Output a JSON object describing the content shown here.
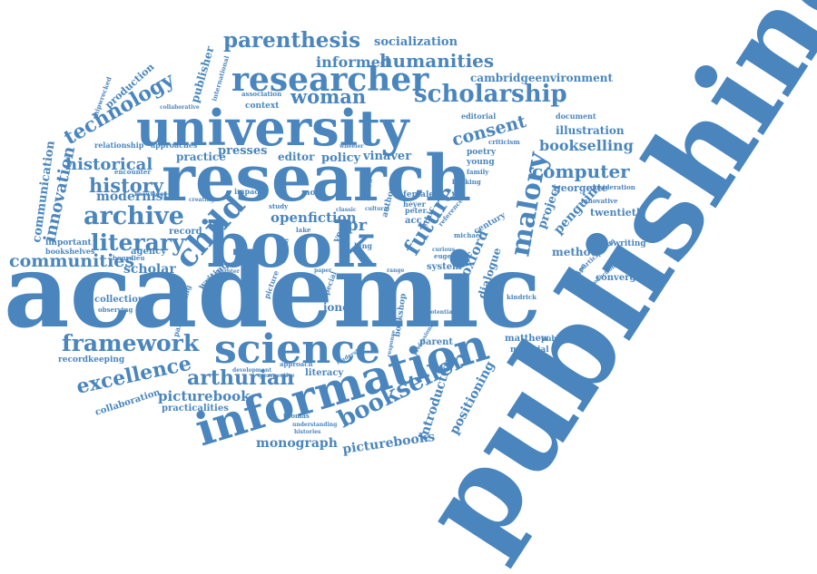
{
  "colors": {
    "ink": "#4a86bd",
    "background": "#ffffff"
  },
  "words": {
    "publishing": "publishing",
    "academic": "academic",
    "university": "university",
    "research": "research",
    "book": "book",
    "science": "science",
    "information": "information",
    "researcher": "researcher",
    "parenthesis": "parenthesis",
    "scholarship": "scholarship",
    "framework": "framework",
    "archive": "archive",
    "literary": "literary",
    "history": "history",
    "historical": "historical",
    "communities": "communities",
    "child": "child",
    "excellence": "excellence",
    "arthurian": "arthurian",
    "bookseller": "bookseller",
    "technology": "technology",
    "woman": "woman",
    "humanities": "humanities",
    "informed": "informed",
    "computer": "computer",
    "malory": "malory",
    "future": "future",
    "consent": "consent",
    "bookselling": "bookselling",
    "innovation": "innovation",
    "communication": "communication",
    "modernist": "modernist",
    "openfiction": "openfiction",
    "picturebook": "picturebook",
    "picturebooks": "picturebooks",
    "monograph": "monograph",
    "introduction": "introduction",
    "positioning": "positioning",
    "socialization": "socialization",
    "cambridgeenvironment": "cambridgeenvironment",
    "scholar": "scholar",
    "presses": "presses",
    "policy": "policy",
    "vinaver": "vinaver",
    "editor": "editor",
    "oxford": "oxford",
    "project": "project",
    "penguin": "penguin",
    "dialogue": "dialogue",
    "jones": "jones",
    "practice": "practice",
    "publisher": "publisher",
    "production": "production",
    "illustration": "illustration",
    "georgette": "georgette",
    "twentieth": "twentieth",
    "method": "method",
    "convergence": "convergence",
    "lewiswriting": "lewiswriting",
    "collection": "collection",
    "recordkeeping": "recordkeeping",
    "collaboration": "collaboration",
    "practicalities": "practicalities",
    "matthew": "matthew",
    "publication": "publication",
    "material": "material",
    "parent": "parent",
    "literacy": "literacy",
    "bookshop": "bookshop",
    "writing": "writing",
    "record": "record",
    "agency": "agency",
    "important": "important",
    "bookshelves": "bookshelves",
    "relationship": "relationship",
    "approaches": "approaches",
    "context": "context",
    "association": "association",
    "editorial": "editorial",
    "document": "document",
    "criticism": "criticism",
    "young": "young",
    "poetry": "poetry",
    "female": "female",
    "heyer": "heyer",
    "century": "century",
    "system": "system",
    "michael": "michael",
    "peter": "peter",
    "acc": "acc",
    "innovative": "innovative",
    "consideration": "consideration",
    "participation": "participation",
    "tradition": "tradition",
    "kindrick": "kindrick",
    "thomas": "thomas",
    "understanding": "understanding",
    "approach": "approach",
    "development": "development",
    "perspective": "perspective",
    "observing": "observing",
    "participating": "participating",
    "bourdieu": "bourdieu",
    "encounter": "encounter",
    "knowledge": "knowledge",
    "creating": "creating",
    "impact": "impact",
    "more": "more",
    "study": "study",
    "international": "international",
    "collaborative": "collaborative",
    "shipwrecked": "shipwrecked",
    "wheeler": "wheeler",
    "eugene": "eugene",
    "curious": "curious",
    "king": "king",
    "lake": "lake",
    "hidden": "hidden",
    "chapter": "chapter",
    "classic": "classic",
    "cultural": "cultural",
    "review": "review",
    "author": "author",
    "ethic": "ethic",
    "reference": "reference",
    "year": "year",
    "paper": "paper",
    "trade": "trade",
    "range": "range",
    "picture": "picture",
    "special": "special",
    "issue": "issue",
    "histories": "histories",
    "potential": "potential",
    "response": "response",
    "professional": "professional",
    "leadership": "leadership",
    "bucking": "bucking",
    "family": "family",
    "pr": "pr",
    "production_small": "production"
  }
}
